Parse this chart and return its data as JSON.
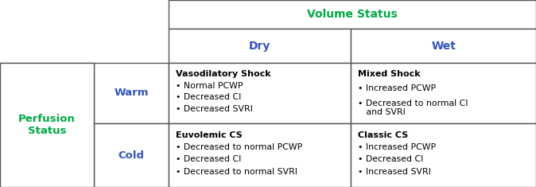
{
  "fig_width": 6.74,
  "fig_height": 2.35,
  "dpi": 100,
  "background_color": "#ffffff",
  "line_color": "#555555",
  "line_width": 1.0,
  "header_color_green": "#00aa44",
  "header_color_blue": "#3355bb",
  "row_label_color_green": "#00aa44",
  "row_label_color_blue": "#3355bb",
  "cols": [
    0.0,
    0.175,
    0.315,
    0.655,
    1.0
  ],
  "rows": [
    1.0,
    0.845,
    0.665,
    0.34,
    0.0
  ],
  "volume_status_label": "Volume Status",
  "dry_label": "Dry",
  "wet_label": "Wet",
  "perfusion_label": "Perfusion\nStatus",
  "warm_label": "Warm",
  "cold_label": "Cold",
  "cell_warm_dry_title": "Vasodilatory Shock",
  "cell_warm_dry_bullets": [
    "• Normal PCWP",
    "• Decreased CI",
    "• Decreased SVRI"
  ],
  "cell_warm_wet_title": "Mixed Shock",
  "cell_warm_wet_bullets": [
    "• Increased PCWP",
    "• Decreased to normal CI\n   and SVRI"
  ],
  "cell_cold_dry_title": "Euvolemic CS",
  "cell_cold_dry_bullets": [
    "• Decreased to normal PCWP",
    "• Decreased CI",
    "• Decreased to normal SVRI"
  ],
  "cell_cold_wet_title": "Classic CS",
  "cell_cold_wet_bullets": [
    "• Increased PCWP",
    "• Decreased CI",
    "• Increased SVRI"
  ],
  "header_fontsize": 10,
  "label_fontsize": 9.5,
  "cell_title_fontsize": 8,
  "cell_bullet_fontsize": 7.8
}
